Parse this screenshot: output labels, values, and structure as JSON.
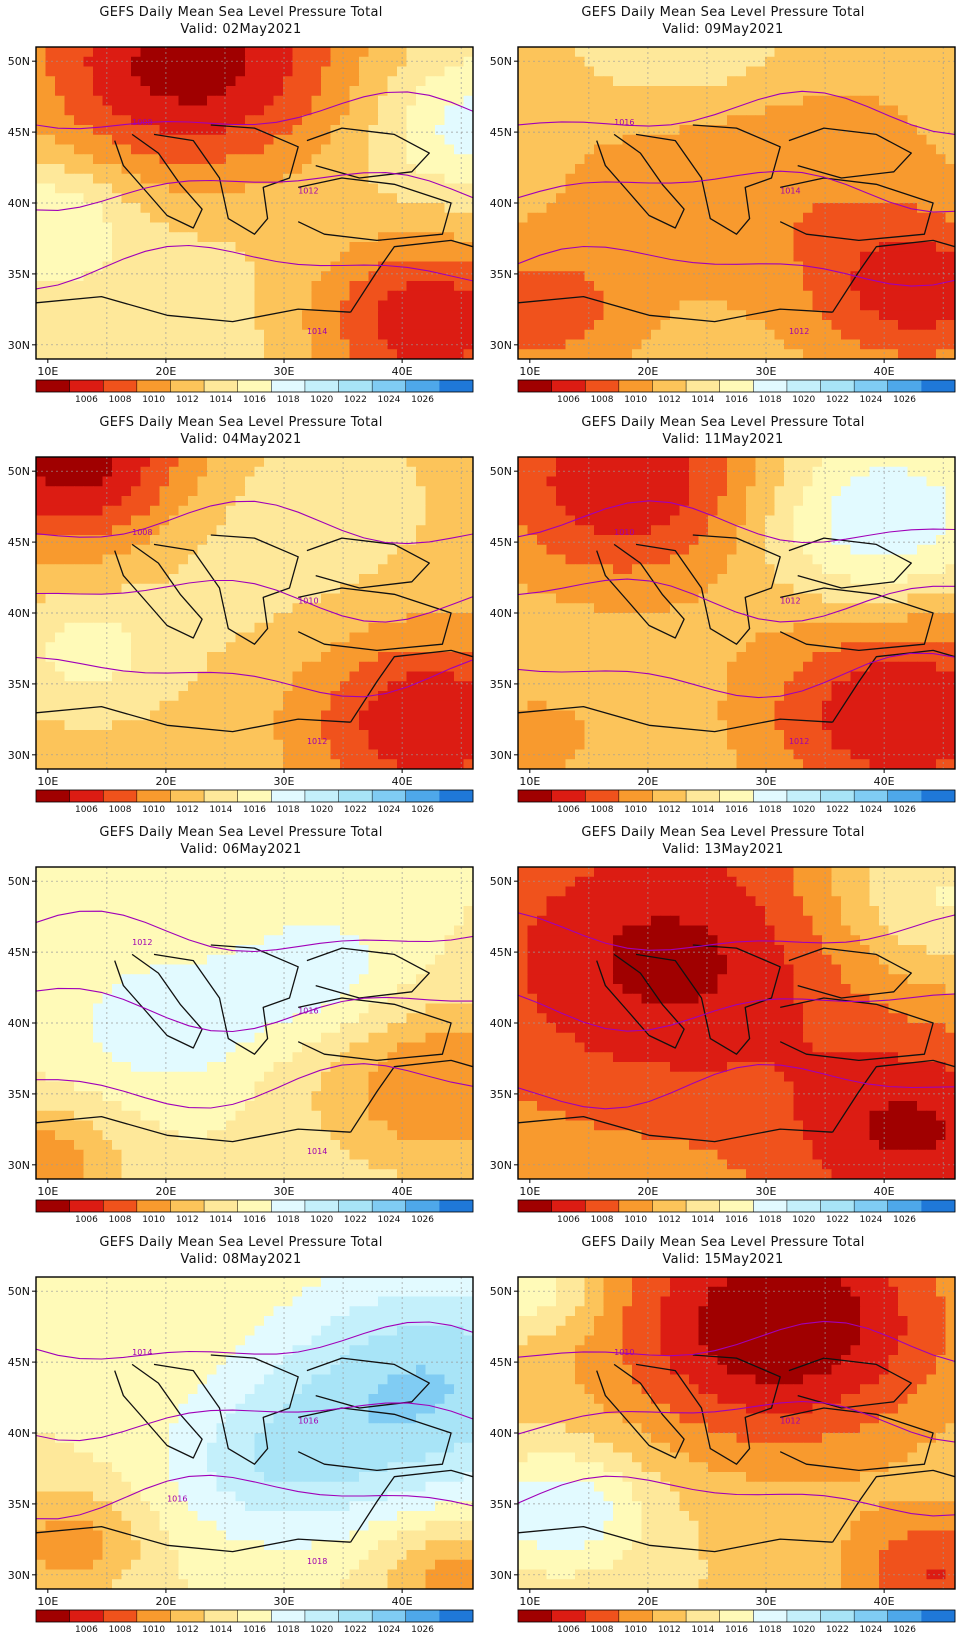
{
  "title": "GEFS Daily Mean Sea Level Pressure Total",
  "colorbar": {
    "levels": [
      "1006",
      "1008",
      "1010",
      "1012",
      "1014",
      "1016",
      "1018",
      "1020",
      "1022",
      "1024",
      "1026"
    ],
    "colors": [
      "#a00000",
      "#dc1c13",
      "#f0521c",
      "#f89a2e",
      "#fcc45a",
      "#fee89a",
      "#fffab8",
      "#e2faff",
      "#c4f0fb",
      "#a8e4f7",
      "#80ccf3",
      "#4ea8ea",
      "#1f78d8"
    ]
  },
  "axes": {
    "lon_labels": [
      "10E",
      "20E",
      "30E",
      "40E"
    ],
    "lon_values": [
      10,
      20,
      30,
      40
    ],
    "lat_labels": [
      "50N",
      "45N",
      "40N",
      "35N",
      "30N"
    ],
    "lat_values": [
      50,
      45,
      40,
      35,
      30
    ],
    "lon_range": [
      9,
      46
    ],
    "lat_range": [
      29,
      51
    ]
  },
  "panels": [
    {
      "valid": "Valid: 02May2021",
      "labels": [
        "1008",
        "1012",
        "1014"
      ]
    },
    {
      "valid": "Valid: 09May2021",
      "labels": [
        "1016",
        "1014",
        "1012"
      ]
    },
    {
      "valid": "Valid: 04May2021",
      "labels": [
        "1008",
        "1010",
        "1012"
      ]
    },
    {
      "valid": "Valid: 11May2021",
      "labels": [
        "1010",
        "1012",
        "1012"
      ]
    },
    {
      "valid": "Valid: 06May2021",
      "labels": [
        "1012",
        "1016",
        "1014"
      ]
    },
    {
      "valid": "Valid: 13May2021",
      "labels": []
    },
    {
      "valid": "Valid: 08May2021",
      "labels": [
        "1014",
        "1016",
        "1018",
        "1016"
      ]
    },
    {
      "valid": "Valid: 15May2021",
      "labels": [
        "1010",
        "1012"
      ]
    }
  ]
}
